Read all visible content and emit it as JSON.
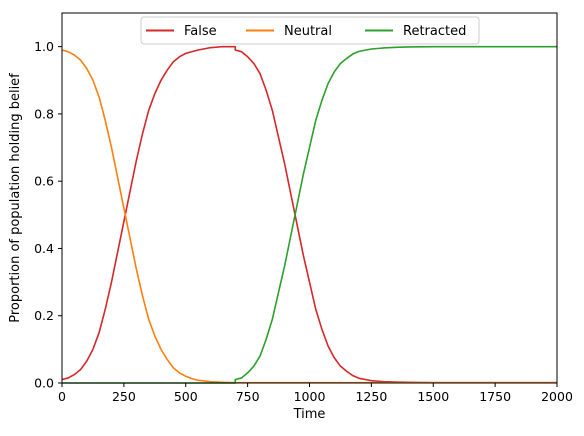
{
  "chart_data": {
    "type": "line",
    "title": "",
    "xlabel": "Time",
    "ylabel": "Proportion of population holding belief",
    "xlim": [
      0,
      2000
    ],
    "ylim": [
      0,
      1.1
    ],
    "xticks": [
      0,
      250,
      500,
      750,
      1000,
      1250,
      1500,
      1750,
      2000
    ],
    "yticks": [
      0.0,
      0.2,
      0.4,
      0.6,
      0.8,
      1.0
    ],
    "xtick_labels": [
      "0",
      "250",
      "500",
      "750",
      "1000",
      "1250",
      "1500",
      "1750",
      "2000"
    ],
    "ytick_labels": [
      "0.0",
      "0.2",
      "0.4",
      "0.6",
      "0.8",
      "1.0"
    ],
    "grid": false,
    "legend": {
      "position": "top-center",
      "columns": 3
    },
    "series": [
      {
        "name": "False",
        "color": "#d62728",
        "x": [
          0,
          25,
          50,
          75,
          100,
          125,
          150,
          175,
          200,
          225,
          250,
          275,
          300,
          325,
          350,
          375,
          400,
          425,
          450,
          475,
          500,
          550,
          600,
          650,
          700,
          700,
          725,
          750,
          775,
          800,
          825,
          850,
          875,
          900,
          925,
          950,
          975,
          1000,
          1025,
          1050,
          1075,
          1100,
          1125,
          1150,
          1175,
          1200,
          1250,
          1300,
          1350,
          1400,
          1500,
          1600,
          1750,
          2000
        ],
        "y": [
          0.01,
          0.015,
          0.025,
          0.04,
          0.065,
          0.1,
          0.15,
          0.22,
          0.3,
          0.39,
          0.48,
          0.57,
          0.66,
          0.74,
          0.81,
          0.86,
          0.9,
          0.93,
          0.955,
          0.97,
          0.98,
          0.99,
          0.997,
          1.0,
          1.0,
          0.99,
          0.985,
          0.97,
          0.95,
          0.92,
          0.87,
          0.81,
          0.73,
          0.65,
          0.56,
          0.47,
          0.38,
          0.3,
          0.22,
          0.16,
          0.11,
          0.075,
          0.05,
          0.035,
          0.022,
          0.014,
          0.007,
          0.004,
          0.003,
          0.002,
          0.001,
          0.001,
          0.001,
          0.001
        ]
      },
      {
        "name": "Neutral",
        "color": "#ff7f0e",
        "x": [
          0,
          25,
          50,
          75,
          100,
          125,
          150,
          175,
          200,
          225,
          250,
          275,
          300,
          325,
          350,
          375,
          400,
          425,
          450,
          475,
          500,
          525,
          550,
          600,
          650,
          700,
          750,
          1000,
          1500,
          2000
        ],
        "y": [
          0.99,
          0.985,
          0.975,
          0.96,
          0.935,
          0.9,
          0.85,
          0.78,
          0.7,
          0.61,
          0.52,
          0.43,
          0.34,
          0.26,
          0.19,
          0.14,
          0.1,
          0.07,
          0.045,
          0.03,
          0.02,
          0.013,
          0.008,
          0.004,
          0.002,
          0.001,
          0.001,
          0.001,
          0.001,
          0.001
        ]
      },
      {
        "name": "Retracted",
        "color": "#2ca02c",
        "x": [
          0,
          700,
          700,
          725,
          750,
          775,
          800,
          825,
          850,
          875,
          900,
          925,
          950,
          975,
          1000,
          1025,
          1050,
          1075,
          1100,
          1125,
          1150,
          1175,
          1200,
          1250,
          1300,
          1350,
          1400,
          1500,
          1600,
          1750,
          2000
        ],
        "y": [
          0.0,
          0.0,
          0.01,
          0.015,
          0.03,
          0.05,
          0.08,
          0.13,
          0.19,
          0.27,
          0.35,
          0.44,
          0.53,
          0.62,
          0.7,
          0.78,
          0.84,
          0.89,
          0.925,
          0.95,
          0.965,
          0.978,
          0.986,
          0.993,
          0.996,
          0.998,
          0.999,
          1.0,
          1.0,
          1.0,
          1.0
        ]
      }
    ]
  }
}
